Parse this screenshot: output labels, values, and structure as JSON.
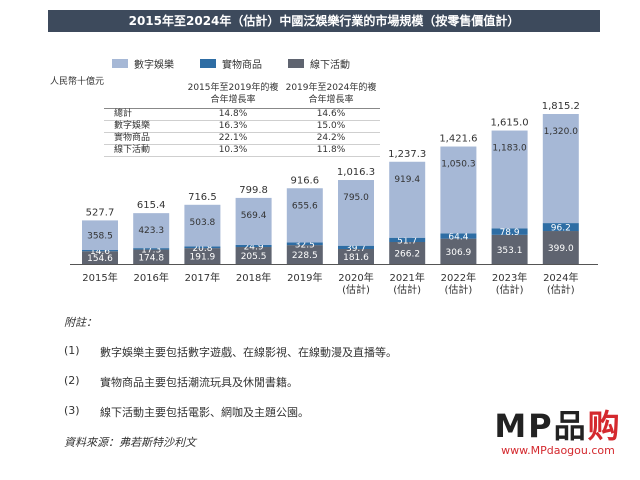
{
  "header": {
    "title": "2015年至2024年（估計）中國泛娛樂行業的市場規模（按零售價值計）"
  },
  "chart_data": {
    "type": "bar",
    "stacked": true,
    "title": "2015年至2024年（估計）中國泛娛樂行業的市場規模（按零售價值計）",
    "ylabel": "人民幣十億元",
    "categories": [
      "2015年",
      "2016年",
      "2017年",
      "2018年",
      "2019年",
      "2020年(估計)",
      "2021年(估計)",
      "2022年(估計)",
      "2023年(估計)",
      "2024年(估計)"
    ],
    "category_lines": [
      [
        "2015年"
      ],
      [
        "2016年"
      ],
      [
        "2017年"
      ],
      [
        "2018年"
      ],
      [
        "2019年"
      ],
      [
        "2020年",
        "(估計)"
      ],
      [
        "2021年",
        "(估計)"
      ],
      [
        "2022年",
        "(估計)"
      ],
      [
        "2023年",
        "(估計)"
      ],
      [
        "2024年",
        "(估計)"
      ]
    ],
    "series": [
      {
        "name": "線下活動",
        "color": "#5f6470",
        "values": [
          154.6,
          174.8,
          191.9,
          205.5,
          228.5,
          181.6,
          266.2,
          306.9,
          353.1,
          399.0
        ]
      },
      {
        "name": "實物商品",
        "color": "#2e6da4",
        "values": [
          14.6,
          17.3,
          20.8,
          24.9,
          32.5,
          39.7,
          51.7,
          64.4,
          78.9,
          96.2
        ]
      },
      {
        "name": "數字娛樂",
        "color": "#a6b8d6",
        "values": [
          358.5,
          423.3,
          503.8,
          569.4,
          655.6,
          795.0,
          919.4,
          1050.3,
          1183.0,
          1320.0
        ]
      }
    ],
    "value_labels": {
      "線下活動": [
        "154.6",
        "174.8",
        "191.9",
        "205.5",
        "228.5",
        "181.6",
        "266.2",
        "306.9",
        "353.1",
        "399.0"
      ],
      "實物商品": [
        "14.6",
        "17.3",
        "20.8",
        "24.9",
        "32.5",
        "39.7",
        "51.7",
        "64.4",
        "78.9",
        "96.2"
      ],
      "數字娛樂": [
        "358.5",
        "423.3",
        "503.8",
        "569.4",
        "655.6",
        "795.0",
        "919.4",
        "1,050.3",
        "1,183.0",
        "1,320.0"
      ]
    },
    "totals": [
      "527.7",
      "615.4",
      "716.5",
      "799.8",
      "916.6",
      "1,016.3",
      "1,237.3",
      "1,421.6",
      "1,615.0",
      "1,815.2"
    ],
    "ylim": [
      0,
      1815.2
    ],
    "grid": false,
    "legend_position": "top-left",
    "legend_order": [
      "數字娛樂",
      "實物商品",
      "線下活動"
    ]
  },
  "legend": [
    {
      "label": "數字娛樂",
      "color": "#a6b8d6"
    },
    {
      "label": "實物商品",
      "color": "#2e6da4"
    },
    {
      "label": "線下活動",
      "color": "#5f6470"
    }
  ],
  "unit_label": "人民幣十億元",
  "cagr_table": {
    "headers": [
      "",
      "2015年至2019年的複合年增長率",
      "2019年至2024年的複合年增長率"
    ],
    "rows": [
      {
        "label": "總計",
        "a": "14.8%",
        "b": "14.6%"
      },
      {
        "label": "數字娛樂",
        "a": "16.3%",
        "b": "15.0%"
      },
      {
        "label": "實物商品",
        "a": "22.1%",
        "b": "24.2%"
      },
      {
        "label": "線下活動",
        "a": "10.3%",
        "b": "11.8%"
      }
    ]
  },
  "notes": {
    "heading": "附註：",
    "items": [
      {
        "num": "(1)",
        "text": "數字娛樂主要包括數字遊戲、在線影視、在線動漫及直播等。"
      },
      {
        "num": "(2)",
        "text": "實物商品主要包括潮流玩具及休閒書籍。"
      },
      {
        "num": "(3)",
        "text": "線下活動主要包括電影、網咖及主題公園。"
      }
    ],
    "source": "資料來源：弗若斯特沙利文"
  },
  "watermark": {
    "logo_a": "MP",
    "logo_b": "品",
    "logo_c": "购",
    "url": "www.MPdaogou.com"
  }
}
